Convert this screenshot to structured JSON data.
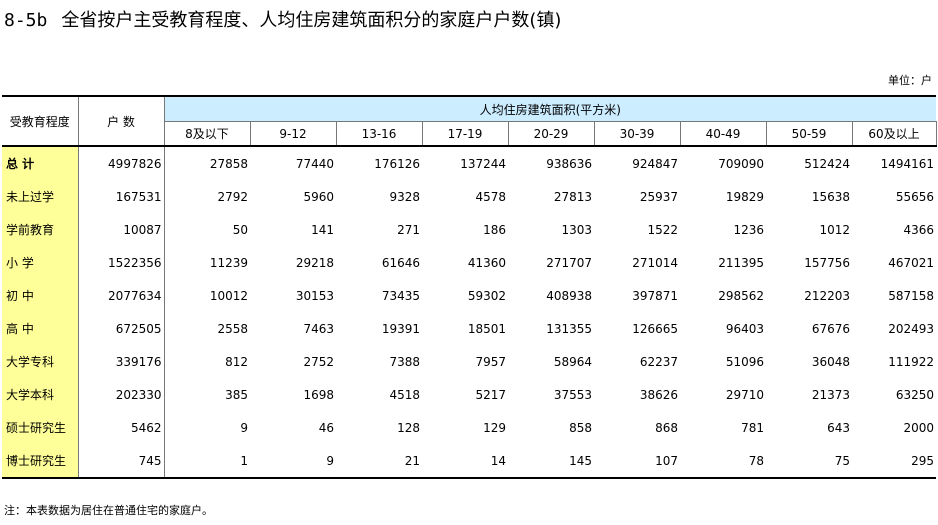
{
  "title": {
    "code": "8-5b",
    "text": "全省按户主受教育程度、人均住房建筑面积分的家庭户户数(镇)"
  },
  "unit": "单位：户",
  "header": {
    "row_label": "受教育程度",
    "total_label": "户  数",
    "group_label": "人均住房建筑面积(平方米)",
    "columns": [
      "8及以下",
      "9-12",
      "13-16",
      "17-19",
      "20-29",
      "30-39",
      "40-49",
      "50-59",
      "60及以上"
    ]
  },
  "rows": [
    {
      "label": "总  计",
      "total": "4997826",
      "values": [
        "27858",
        "77440",
        "176126",
        "137244",
        "938636",
        "924847",
        "709090",
        "512424",
        "1494161"
      ]
    },
    {
      "label": "未上过学",
      "total": "167531",
      "values": [
        "2792",
        "5960",
        "9328",
        "4578",
        "27813",
        "25937",
        "19829",
        "15638",
        "55656"
      ]
    },
    {
      "label": "学前教育",
      "total": "10087",
      "values": [
        "50",
        "141",
        "271",
        "186",
        "1303",
        "1522",
        "1236",
        "1012",
        "4366"
      ]
    },
    {
      "label": "小  学",
      "total": "1522356",
      "values": [
        "11239",
        "29218",
        "61646",
        "41360",
        "271707",
        "271014",
        "211395",
        "157756",
        "467021"
      ]
    },
    {
      "label": "初  中",
      "total": "2077634",
      "values": [
        "10012",
        "30153",
        "73435",
        "59302",
        "408938",
        "397871",
        "298562",
        "212203",
        "587158"
      ]
    },
    {
      "label": "高  中",
      "total": "672505",
      "values": [
        "2558",
        "7463",
        "19391",
        "18501",
        "131355",
        "126665",
        "96403",
        "67676",
        "202493"
      ]
    },
    {
      "label": "大学专科",
      "total": "339176",
      "values": [
        "812",
        "2752",
        "7388",
        "7957",
        "58964",
        "62237",
        "51096",
        "36048",
        "111922"
      ]
    },
    {
      "label": "大学本科",
      "total": "202330",
      "values": [
        "385",
        "1698",
        "4518",
        "5217",
        "37553",
        "38626",
        "29710",
        "21373",
        "63250"
      ]
    },
    {
      "label": "硕士研究生",
      "total": "5462",
      "values": [
        "9",
        "46",
        "128",
        "129",
        "858",
        "868",
        "781",
        "643",
        "2000"
      ]
    },
    {
      "label": "博士研究生",
      "total": "745",
      "values": [
        "1",
        "9",
        "21",
        "14",
        "145",
        "107",
        "78",
        "75",
        "295"
      ]
    }
  ],
  "note": "注：本表数据为居住在普通住宅的家庭户。"
}
